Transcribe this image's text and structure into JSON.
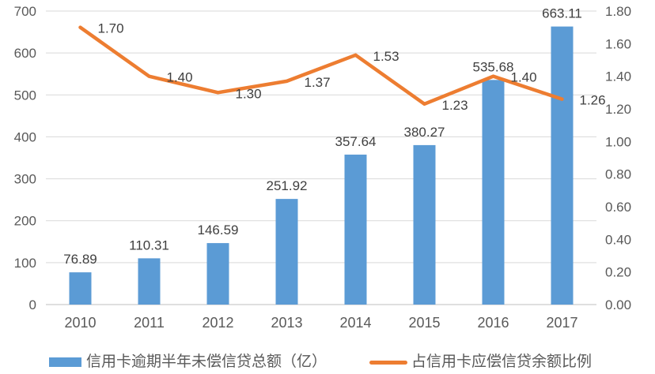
{
  "chart_data": {
    "type": "combo-bar-line",
    "categories": [
      "2010",
      "2011",
      "2012",
      "2013",
      "2014",
      "2015",
      "2016",
      "2017"
    ],
    "series": [
      {
        "name": "信用卡逾期半年未偿信贷总额（亿）",
        "type": "bar",
        "axis": "left",
        "color": "#5B9BD5",
        "values": [
          76.89,
          110.31,
          146.59,
          251.92,
          357.64,
          380.27,
          535.68,
          663.11
        ],
        "labels": [
          "76.89",
          "110.31",
          "146.59",
          "251.92",
          "357.64",
          "380.27",
          "535.68",
          "663.11"
        ]
      },
      {
        "name": "占信用卡应偿信贷余额比例",
        "type": "line",
        "axis": "right",
        "color": "#ED7D31",
        "values": [
          1.7,
          1.4,
          1.3,
          1.37,
          1.53,
          1.23,
          1.4,
          1.26
        ],
        "labels": [
          "1.70",
          "1.40",
          "1.30",
          "1.37",
          "1.53",
          "1.23",
          "1.40",
          "1.26"
        ]
      }
    ],
    "left_axis": {
      "min": 0,
      "max": 700,
      "step": 100,
      "ticks": [
        "0",
        "100",
        "200",
        "300",
        "400",
        "500",
        "600",
        "700"
      ]
    },
    "right_axis": {
      "min": 0,
      "max": 1.8,
      "step": 0.2,
      "ticks": [
        "0.00",
        "0.20",
        "0.40",
        "0.60",
        "0.80",
        "1.00",
        "1.20",
        "1.40",
        "1.60",
        "1.80"
      ]
    },
    "title": "",
    "xlabel": "",
    "ylabel": "",
    "grid": true,
    "legend_position": "bottom",
    "colors": {
      "bar": "#5B9BD5",
      "line": "#ED7D31",
      "grid": "#D9D9D9",
      "axis_line": "#BFBFBF",
      "axis_text": "#595959",
      "data_label": "#3F3F3F",
      "background": "#FFFFFF"
    }
  },
  "legend": {
    "bar_label": "信用卡逾期半年未偿信贷总额（亿）",
    "line_label": "占信用卡应偿信贷余额比例"
  }
}
